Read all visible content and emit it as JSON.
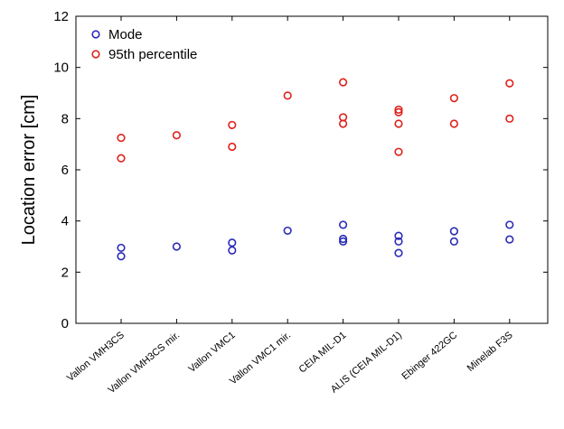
{
  "chart_data": {
    "type": "scatter",
    "ylabel": "Location error [cm]",
    "ylim": [
      0,
      12
    ],
    "yticks": [
      0,
      2,
      4,
      6,
      8,
      10,
      12
    ],
    "grid": false,
    "legend_position": "top-left",
    "categories": [
      "Vallon VMH3CS",
      "Vallon VMH3CS mir.",
      "Vallon VMC1",
      "Vallon VMC1 mir.",
      "CEIA MIL-D1",
      "ALIS (CEIA MIL-D1)",
      "Ebinger 422GC",
      "Minelab F3S"
    ],
    "series": [
      {
        "name": "Mode",
        "color": "#2b2bb8",
        "points": [
          [
            0,
            2.95
          ],
          [
            0,
            2.62
          ],
          [
            1,
            3.0
          ],
          [
            2,
            3.15
          ],
          [
            2,
            2.85
          ],
          [
            3,
            3.62
          ],
          [
            4,
            3.85
          ],
          [
            4,
            3.3
          ],
          [
            4,
            3.2
          ],
          [
            5,
            3.42
          ],
          [
            5,
            3.2
          ],
          [
            5,
            2.75
          ],
          [
            6,
            3.6
          ],
          [
            6,
            3.2
          ],
          [
            7,
            3.85
          ],
          [
            7,
            3.28
          ]
        ]
      },
      {
        "name": "95th percentile",
        "color": "#e0211c",
        "points": [
          [
            0,
            7.25
          ],
          [
            0,
            6.45
          ],
          [
            1,
            7.35
          ],
          [
            2,
            7.75
          ],
          [
            2,
            6.9
          ],
          [
            3,
            8.9
          ],
          [
            4,
            9.42
          ],
          [
            4,
            8.05
          ],
          [
            4,
            7.8
          ],
          [
            5,
            8.35
          ],
          [
            5,
            8.25
          ],
          [
            5,
            7.8
          ],
          [
            5,
            6.7
          ],
          [
            6,
            8.8
          ],
          [
            6,
            7.8
          ],
          [
            7,
            9.38
          ],
          [
            7,
            8.0
          ]
        ]
      }
    ]
  }
}
